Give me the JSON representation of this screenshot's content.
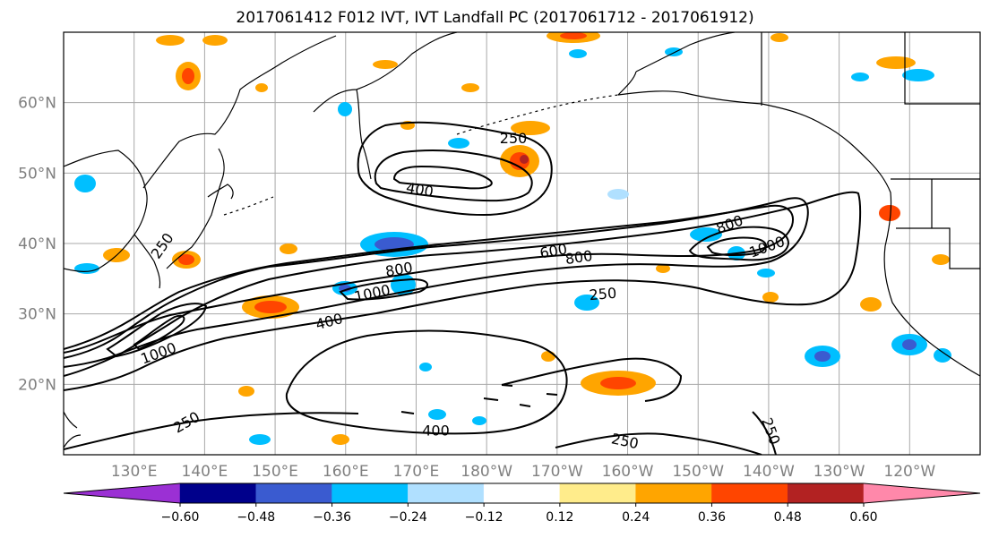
{
  "title": "2017061412 F012 IVT, IVT Landfall PC (2017061712 - 2017061912)",
  "lat_labels": [
    {
      "value": 60,
      "label": "60°N"
    },
    {
      "value": 50,
      "label": "50°N"
    },
    {
      "value": 40,
      "label": "40°N"
    },
    {
      "value": 30,
      "label": "30°N"
    },
    {
      "value": 20,
      "label": "20°N"
    }
  ],
  "lon_labels": [
    {
      "value": 130,
      "label": "130°E"
    },
    {
      "value": 140,
      "label": "140°E"
    },
    {
      "value": 150,
      "label": "150°E"
    },
    {
      "value": 160,
      "label": "160°E"
    },
    {
      "value": 170,
      "label": "170°E"
    },
    {
      "value": 180,
      "label": "180°W"
    },
    {
      "value": 190,
      "label": "170°W"
    },
    {
      "value": 200,
      "label": "160°W"
    },
    {
      "value": 210,
      "label": "150°W"
    },
    {
      "value": 220,
      "label": "140°W"
    },
    {
      "value": 230,
      "label": "130°W"
    },
    {
      "value": 240,
      "label": "120°W"
    }
  ],
  "map": {
    "lon_range": [
      120,
      250
    ],
    "lat_range": [
      10,
      70
    ],
    "grid": true
  },
  "ivt_contours": {
    "levels": [
      250,
      400,
      600,
      800,
      1000
    ],
    "labels": [
      {
        "text": "250",
        "lon": 183.8,
        "lat": 54.8,
        "rot": 0
      },
      {
        "text": "400",
        "lon": 170.5,
        "lat": 47.5,
        "rot": 10
      },
      {
        "text": "250",
        "lon": 134.1,
        "lat": 39.6,
        "rot": -55
      },
      {
        "text": "800",
        "lon": 167.6,
        "lat": 36.2,
        "rot": -10
      },
      {
        "text": "600",
        "lon": 189.5,
        "lat": 38.8,
        "rot": -10
      },
      {
        "text": "800",
        "lon": 193.1,
        "lat": 37.9,
        "rot": -8
      },
      {
        "text": "1000",
        "lon": 163.8,
        "lat": 32.8,
        "rot": -12
      },
      {
        "text": "250",
        "lon": 196.5,
        "lat": 32.7,
        "rot": -5
      },
      {
        "text": "800",
        "lon": 214.5,
        "lat": 42.6,
        "rot": -20
      },
      {
        "text": "1000",
        "lon": 219.8,
        "lat": 39.4,
        "rot": -20
      },
      {
        "text": "400",
        "lon": 157.7,
        "lat": 28.8,
        "rot": -15
      },
      {
        "text": "1000",
        "lon": 133.5,
        "lat": 24.3,
        "rot": -20
      },
      {
        "text": "250",
        "lon": 137.5,
        "lat": 14.5,
        "rot": -30
      },
      {
        "text": "400",
        "lon": 172.8,
        "lat": 13.3,
        "rot": 0
      },
      {
        "text": "250",
        "lon": 199.6,
        "lat": 11.8,
        "rot": 12
      },
      {
        "text": "250",
        "lon": 220.2,
        "lat": 13.3,
        "rot": 70
      }
    ]
  },
  "colorbar": {
    "colors": [
      "#9b30d4",
      "#00008b",
      "#3a5bd0",
      "#00bfff",
      "#b0e0ff",
      "#ffffff",
      "#ffec8b",
      "#ffa500",
      "#ff4500",
      "#b22222",
      "#ff88aa"
    ],
    "tick_values": [
      -0.6,
      -0.48,
      -0.36,
      -0.24,
      -0.12,
      0.12,
      0.24,
      0.36,
      0.48,
      0.6
    ],
    "tick_labels": [
      "−0.60",
      "−0.48",
      "−0.36",
      "−0.24",
      "−0.12",
      "0.12",
      "0.24",
      "0.36",
      "0.48",
      "0.60"
    ]
  }
}
